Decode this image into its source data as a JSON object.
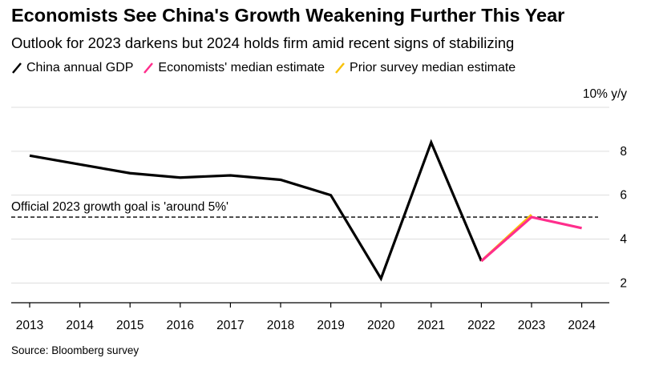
{
  "title": "Economists See China's Growth Weakening Further This Year",
  "subtitle": "Outlook for 2023 darkens but 2024 holds firm amid recent signs of stabilizing",
  "source": "Source: Bloomberg survey",
  "colors": {
    "gdp": "#000000",
    "median": "#ff2e8c",
    "prior": "#f9c20a",
    "grid": "#dddddd"
  },
  "chart_data": {
    "type": "line",
    "ylabel": "10% y/y",
    "y_ticks": [
      2,
      4,
      6,
      8
    ],
    "ylim": [
      1.1,
      10
    ],
    "x_categories": [
      "2013",
      "2014",
      "2015",
      "2016",
      "2017",
      "2018",
      "2019",
      "2020",
      "2021",
      "2022",
      "2023",
      "2024"
    ],
    "legend": [
      "China annual GDP",
      "Economists' median estimate",
      "Prior survey median estimate"
    ],
    "series": [
      {
        "name": "China annual GDP",
        "x": [
          "2013",
          "2014",
          "2015",
          "2016",
          "2017",
          "2018",
          "2019",
          "2020",
          "2021",
          "2022"
        ],
        "values": [
          7.8,
          7.4,
          7.0,
          6.8,
          6.9,
          6.7,
          6.0,
          2.2,
          8.4,
          3.0
        ]
      },
      {
        "name": "Prior survey median estimate",
        "x": [
          "2022",
          "2023"
        ],
        "values": [
          3.0,
          5.1
        ]
      },
      {
        "name": "Economists' median estimate",
        "x": [
          "2022",
          "2023",
          "2024"
        ],
        "values": [
          3.0,
          5.0,
          4.5
        ]
      }
    ],
    "reference_line": {
      "value": 5,
      "label": "Official 2023 growth goal is 'around 5%'"
    },
    "grid": true
  }
}
